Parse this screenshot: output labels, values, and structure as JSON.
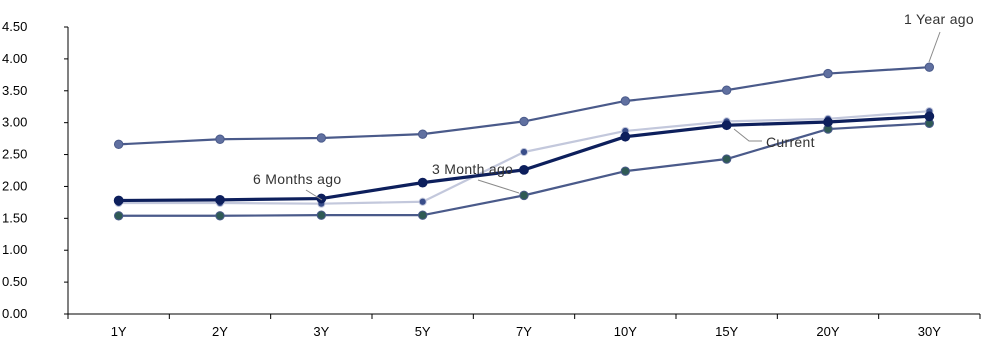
{
  "chart_data": {
    "type": "line",
    "categories": [
      "1Y",
      "2Y",
      "3Y",
      "5Y",
      "7Y",
      "10Y",
      "15Y",
      "20Y",
      "30Y"
    ],
    "ylim": [
      0,
      4.5
    ],
    "yticks": [
      "0.00",
      "0.50",
      "1.00",
      "1.50",
      "2.00",
      "2.50",
      "3.00",
      "3.50",
      "4.00",
      "4.50"
    ],
    "grid": false,
    "series": [
      {
        "name": "1 Year ago",
        "color": "#4a5a8a",
        "values": [
          2.66,
          2.74,
          2.76,
          2.82,
          3.02,
          3.34,
          3.51,
          3.77,
          3.87
        ]
      },
      {
        "name": "6 Months ago",
        "color": "#c3c8dc",
        "values": [
          1.74,
          1.74,
          1.73,
          1.76,
          2.54,
          2.87,
          3.02,
          3.06,
          3.18
        ]
      },
      {
        "name": "3 Month ago",
        "color": "#4a5a8a",
        "values": [
          1.54,
          1.54,
          1.55,
          1.55,
          1.86,
          2.24,
          2.43,
          2.9,
          2.99
        ]
      },
      {
        "name": "Current",
        "color": "#0d1f5c",
        "values": [
          1.78,
          1.79,
          1.81,
          2.06,
          2.26,
          2.78,
          2.96,
          3.01,
          3.1
        ]
      }
    ],
    "annotations": [
      {
        "text": "1 Year ago"
      },
      {
        "text": "6 Months ago"
      },
      {
        "text": "3 Month ago"
      },
      {
        "text": "Current"
      }
    ]
  }
}
